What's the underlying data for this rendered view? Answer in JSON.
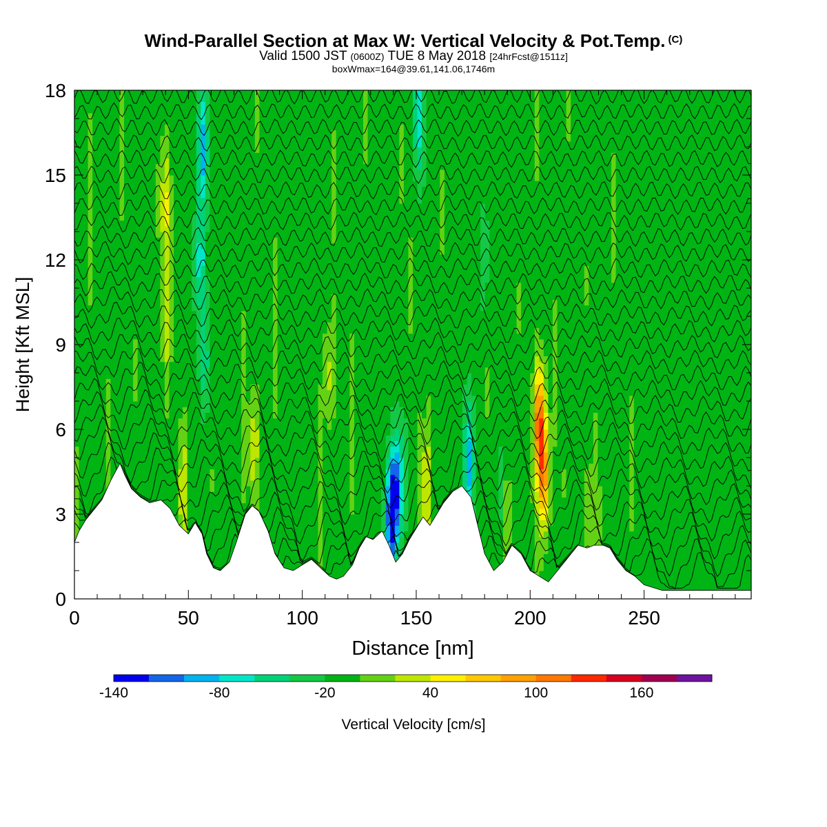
{
  "chart_data": {
    "type": "heatmap",
    "title": "Wind-Parallel Section at Max W: Vertical Velocity & Pot.Temp.",
    "title_mark": "(C)",
    "subtitle": {
      "a": "Valid 1500 JST",
      "b": "(0600Z)",
      "c": "TUE 8 May 2018",
      "d": "[24hrFcst@1511z]"
    },
    "subtitle2": "boxWmax=164@39.61,141.06,1746m",
    "xlabel": "Distance [nm]",
    "ylabel": "Height [Kft MSL]",
    "xlim": [
      0,
      297
    ],
    "ylim": [
      0,
      18
    ],
    "xticks": [
      0,
      50,
      100,
      150,
      200,
      250
    ],
    "yticks": [
      0,
      3,
      6,
      9,
      12,
      15,
      18
    ],
    "colorbar": {
      "label": "Vertical Velocity [cm/s]",
      "tick_values": [
        -140,
        -80,
        -20,
        40,
        100,
        160
      ],
      "tick_labels": [
        "-140",
        "-80",
        "-20",
        "40",
        "100",
        "160"
      ],
      "colors": [
        "#0000ee",
        "#1466e8",
        "#00b4f0",
        "#00e6c8",
        "#00d278",
        "#14c846",
        "#00b414",
        "#64d214",
        "#bee600",
        "#fff000",
        "#ffc800",
        "#ffa000",
        "#ff7800",
        "#ff2800",
        "#d7001e",
        "#a00050",
        "#6e14a0"
      ]
    },
    "terrain": {
      "x": [
        0,
        2,
        5,
        8,
        12,
        16,
        20,
        22,
        25,
        29,
        33,
        38,
        42,
        46,
        50,
        53,
        56,
        58,
        61,
        64,
        68,
        71,
        75,
        78,
        81,
        85,
        88,
        92,
        96,
        100,
        104,
        108,
        112,
        115,
        118,
        122,
        125,
        128,
        131,
        135,
        138,
        141,
        144,
        147,
        150,
        153,
        156,
        159,
        162,
        166,
        170,
        174,
        177,
        180,
        184,
        188,
        192,
        196,
        200,
        204,
        208,
        212,
        215,
        218,
        221,
        225,
        228,
        232,
        235,
        238,
        242,
        246,
        250,
        254,
        258,
        262,
        266,
        270,
        275,
        280,
        285,
        290,
        297
      ],
      "height_kft": [
        2.0,
        2.4,
        2.8,
        3.1,
        3.5,
        4.2,
        4.8,
        4.4,
        3.9,
        3.6,
        3.4,
        3.5,
        3.2,
        2.6,
        2.3,
        2.7,
        2.3,
        1.6,
        1.1,
        1.0,
        1.3,
        2.0,
        3.0,
        3.3,
        3.1,
        2.4,
        1.6,
        1.1,
        1.0,
        1.2,
        1.4,
        1.1,
        0.8,
        0.7,
        0.8,
        1.2,
        1.8,
        2.2,
        2.1,
        2.4,
        1.9,
        1.3,
        1.6,
        2.1,
        2.5,
        2.9,
        2.6,
        3.0,
        3.4,
        3.8,
        4.0,
        3.6,
        2.6,
        1.6,
        1.0,
        1.3,
        1.9,
        1.6,
        1.0,
        0.8,
        0.6,
        1.0,
        1.3,
        1.6,
        1.9,
        1.8,
        1.9,
        1.9,
        1.8,
        1.4,
        1.0,
        0.8,
        0.5,
        0.4,
        0.3,
        0.3,
        0.3,
        0.3,
        0.3,
        0.3,
        0.3,
        0.3,
        0.3
      ]
    },
    "theta_contours": {
      "levels_C": [
        12,
        14,
        16,
        18,
        20,
        22,
        24,
        26,
        28,
        30,
        32,
        34,
        36,
        38,
        40,
        42,
        44,
        46,
        48,
        50,
        52,
        54,
        56,
        58,
        60,
        62,
        64,
        66,
        68,
        70,
        72,
        74
      ]
    },
    "w_features": [
      {
        "x": 206,
        "z": 4.3,
        "w": 105
      },
      {
        "x": 204,
        "z": 6.3,
        "w": 125
      },
      {
        "x": 139,
        "z": 3.0,
        "w": -140
      },
      {
        "x": 142,
        "z": 4.0,
        "w": -90
      },
      {
        "x": 56,
        "z": 16.0,
        "w": -80
      },
      {
        "x": 55,
        "z": 12.0,
        "w": -70
      },
      {
        "x": 57,
        "z": 8.5,
        "w": -50
      },
      {
        "x": 173,
        "z": 4.8,
        "w": -80
      },
      {
        "x": 151,
        "z": 17.0,
        "w": -60
      },
      {
        "x": 40,
        "z": 14.0,
        "w": 45
      },
      {
        "x": 40,
        "z": 10.0,
        "w": 35
      },
      {
        "x": 79,
        "z": 5.5,
        "w": 40
      },
      {
        "x": 112,
        "z": 8.0,
        "w": 40
      },
      {
        "x": 154,
        "z": 4.0,
        "w": 45
      },
      {
        "x": 190,
        "z": 3.0,
        "w": 35
      },
      {
        "x": 226,
        "z": 2.8,
        "w": 30
      },
      {
        "x": 48,
        "z": 3.8,
        "w": 40
      },
      {
        "x": 180,
        "z": 12.0,
        "w": -25
      },
      {
        "x": 188,
        "z": 3.5,
        "w": -25
      }
    ]
  }
}
